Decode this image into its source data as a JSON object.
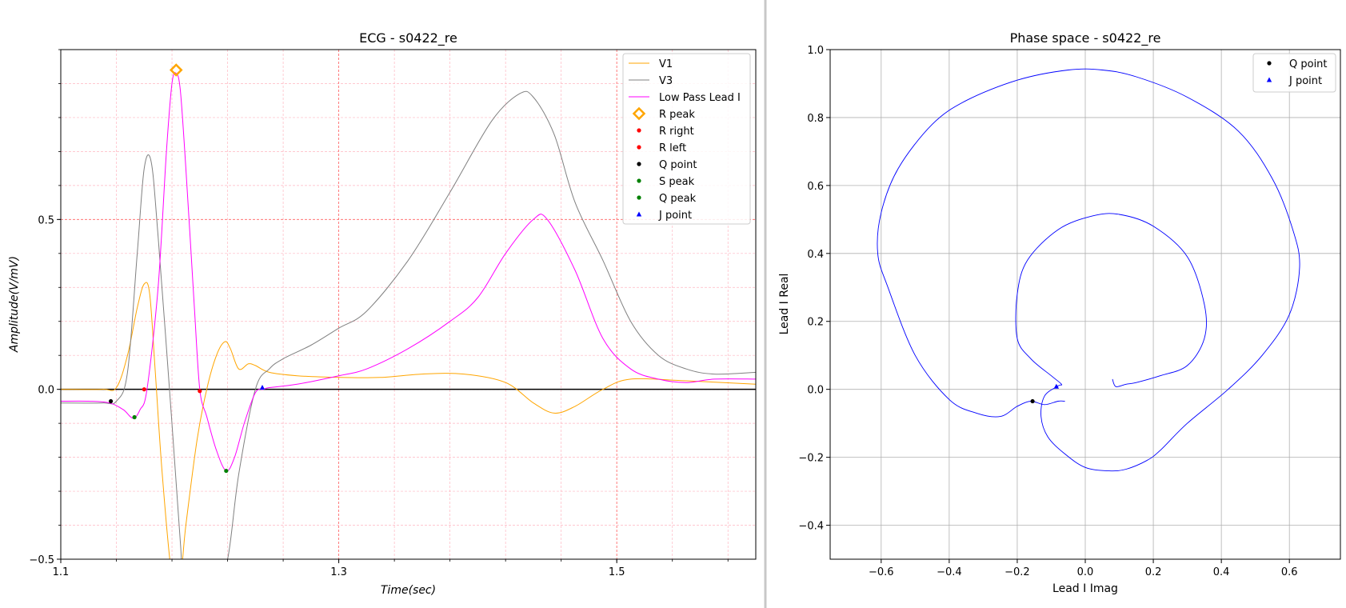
{
  "colors": {
    "v1": "#ffa500",
    "v3": "#808080",
    "lowpass": "#ff00ff",
    "r_peak": "#ffa500",
    "r_right": "#ff0000",
    "r_left": "#ff0000",
    "q_point": "#000000",
    "s_peak": "#008000",
    "q_peak": "#008000",
    "j_point": "#0000ff",
    "phase_curve": "#0000ff",
    "minor_grid": "#ffb6c1",
    "major_grid": "#ff6666",
    "grid": "#b0b0b0"
  },
  "chart_data": [
    {
      "type": "line",
      "title": "ECG - s0422_re",
      "xlabel": "Time(sec)",
      "ylabel": "Amplitude(V/mV)",
      "xlim": [
        1.1,
        1.6
      ],
      "ylim": [
        -0.5,
        1.0
      ],
      "xticks": [
        1.1,
        1.3,
        1.5
      ],
      "xtick_labels": [
        "1.1",
        "1.3",
        "1.5"
      ],
      "yticks": [
        -0.5,
        0.0,
        0.5
      ],
      "ytick_labels": [
        "−0.5",
        "0.0",
        "0.5"
      ],
      "grid": "on (minor and major)",
      "legend_position": "top-right",
      "series": [
        {
          "name": "V1",
          "x": [
            1.1,
            1.13,
            1.14,
            1.148,
            1.155,
            1.16,
            1.164,
            1.168,
            1.173,
            1.18,
            1.186,
            1.19,
            1.198,
            1.205,
            1.212,
            1.218,
            1.222,
            1.228,
            1.235,
            1.24,
            1.25,
            1.27,
            1.3,
            1.33,
            1.36,
            1.39,
            1.42,
            1.44,
            1.455,
            1.47,
            1.49,
            1.51,
            1.55,
            1.6
          ],
          "values": [
            0.0,
            0.0,
            0.005,
            0.1,
            0.24,
            0.31,
            0.28,
            0.05,
            -0.25,
            -0.55,
            -0.55,
            -0.4,
            -0.15,
            0.0,
            0.1,
            0.14,
            0.12,
            0.06,
            0.075,
            0.07,
            0.05,
            0.04,
            0.035,
            0.035,
            0.045,
            0.045,
            0.02,
            -0.04,
            -0.07,
            -0.05,
            0.0,
            0.03,
            0.025,
            0.015
          ]
        },
        {
          "name": "V3",
          "x": [
            1.1,
            1.13,
            1.14,
            1.148,
            1.155,
            1.16,
            1.165,
            1.17,
            1.18,
            1.186,
            1.19,
            1.21,
            1.22,
            1.228,
            1.24,
            1.25,
            1.26,
            1.28,
            1.3,
            1.32,
            1.35,
            1.38,
            1.41,
            1.43,
            1.44,
            1.455,
            1.47,
            1.49,
            1.51,
            1.53,
            1.55,
            1.57,
            1.6
          ],
          "values": [
            -0.04,
            -0.04,
            -0.035,
            0.05,
            0.4,
            0.65,
            0.67,
            0.45,
            -0.1,
            -0.45,
            -0.6,
            -0.6,
            -0.5,
            -0.25,
            0.0,
            0.06,
            0.09,
            0.13,
            0.18,
            0.23,
            0.38,
            0.58,
            0.79,
            0.87,
            0.86,
            0.75,
            0.55,
            0.38,
            0.2,
            0.1,
            0.06,
            0.045,
            0.05
          ]
        },
        {
          "name": "Low Pass Lead I",
          "x": [
            1.1,
            1.12,
            1.135,
            1.145,
            1.152,
            1.157,
            1.162,
            1.17,
            1.176,
            1.18,
            1.183,
            1.186,
            1.19,
            1.196,
            1.2,
            1.205,
            1.212,
            1.219,
            1.225,
            1.232,
            1.24,
            1.246,
            1.25,
            1.27,
            1.3,
            1.32,
            1.35,
            1.38,
            1.4,
            1.42,
            1.44,
            1.45,
            1.47,
            1.49,
            1.51,
            1.53,
            1.55,
            1.57,
            1.6
          ],
          "values": [
            -0.035,
            -0.035,
            -0.04,
            -0.06,
            -0.085,
            -0.06,
            0.0,
            0.3,
            0.7,
            0.9,
            0.93,
            0.88,
            0.65,
            0.25,
            0.0,
            -0.08,
            -0.18,
            -0.24,
            -0.2,
            -0.1,
            -0.01,
            0.0,
            0.005,
            0.015,
            0.04,
            0.06,
            0.12,
            0.2,
            0.27,
            0.4,
            0.5,
            0.5,
            0.35,
            0.15,
            0.06,
            0.03,
            0.02,
            0.03,
            0.03
          ]
        }
      ],
      "markers": [
        {
          "name": "R peak",
          "shape": "diamond",
          "x": 1.183,
          "y": 0.94
        },
        {
          "name": "R right",
          "shape": "dot",
          "x": 1.16,
          "y": 0.0
        },
        {
          "name": "R left",
          "shape": "dot",
          "x": 1.2,
          "y": -0.005
        },
        {
          "name": "Q point",
          "shape": "dot",
          "x": 1.136,
          "y": -0.035
        },
        {
          "name": "S peak",
          "shape": "dot",
          "x": 1.153,
          "y": -0.082
        },
        {
          "name": "Q peak",
          "shape": "dot",
          "x": 1.219,
          "y": -0.24
        },
        {
          "name": "J point",
          "shape": "triangle",
          "x": 1.245,
          "y": 0.005
        }
      ],
      "legend": [
        "V1",
        "V3",
        "Low Pass Lead I",
        "R peak",
        "R right",
        "R left",
        "Q point",
        "S peak",
        "Q peak",
        "J point"
      ]
    },
    {
      "type": "line",
      "title": "Phase space - s0422_re",
      "xlabel": "Lead I Imag",
      "ylabel": "Lead I Real",
      "xlim": [
        -0.75,
        0.75
      ],
      "ylim": [
        -0.5,
        1.0
      ],
      "xticks": [
        -0.6,
        -0.4,
        -0.2,
        0.0,
        0.2,
        0.4,
        0.6
      ],
      "xtick_labels": [
        "−0.6",
        "−0.4",
        "−0.2",
        "0.0",
        "0.2",
        "0.4",
        "0.6"
      ],
      "yticks": [
        -0.4,
        -0.2,
        0.0,
        0.2,
        0.4,
        0.6,
        0.8,
        1.0
      ],
      "ytick_labels": [
        "−0.4",
        "−0.2",
        "0.0",
        "0.2",
        "0.4",
        "0.6",
        "0.8",
        "1.0"
      ],
      "grid": "on",
      "legend_position": "top-right",
      "curve": {
        "x": [
          -0.06,
          -0.08,
          -0.12,
          -0.16,
          -0.2,
          -0.25,
          -0.32,
          -0.4,
          -0.5,
          -0.58,
          -0.61,
          -0.6,
          -0.55,
          -0.45,
          -0.35,
          -0.2,
          -0.05,
          0.05,
          0.15,
          0.3,
          0.45,
          0.55,
          0.61,
          0.63,
          0.6,
          0.52,
          0.42,
          0.3,
          0.22,
          0.18,
          0.12,
          0.07,
          0.0,
          -0.06,
          -0.11,
          -0.13,
          -0.12,
          -0.08,
          -0.07,
          -0.1,
          -0.16,
          -0.2,
          -0.2,
          -0.17,
          -0.08,
          0.02,
          0.1,
          0.2,
          0.3,
          0.35,
          0.35,
          0.3,
          0.22,
          0.15,
          0.12,
          0.09,
          0.08
        ],
        "y": [
          -0.035,
          -0.035,
          -0.045,
          -0.035,
          -0.05,
          -0.08,
          -0.07,
          -0.03,
          0.1,
          0.3,
          0.4,
          0.52,
          0.65,
          0.78,
          0.85,
          0.91,
          0.94,
          0.94,
          0.92,
          0.86,
          0.76,
          0.62,
          0.47,
          0.36,
          0.22,
          0.1,
          0.0,
          -0.1,
          -0.18,
          -0.21,
          -0.235,
          -0.24,
          -0.23,
          -0.19,
          -0.14,
          -0.08,
          -0.02,
          0.01,
          0.015,
          0.04,
          0.09,
          0.15,
          0.28,
          0.38,
          0.47,
          0.51,
          0.515,
          0.48,
          0.39,
          0.25,
          0.15,
          0.07,
          0.04,
          0.02,
          0.015,
          0.008,
          0.03
        ]
      },
      "markers": [
        {
          "name": "Q point",
          "shape": "dot",
          "x": -0.155,
          "y": -0.035
        },
        {
          "name": "J point",
          "shape": "triangle",
          "x": -0.085,
          "y": 0.008
        }
      ],
      "legend": [
        "Q point",
        "J point"
      ]
    }
  ]
}
